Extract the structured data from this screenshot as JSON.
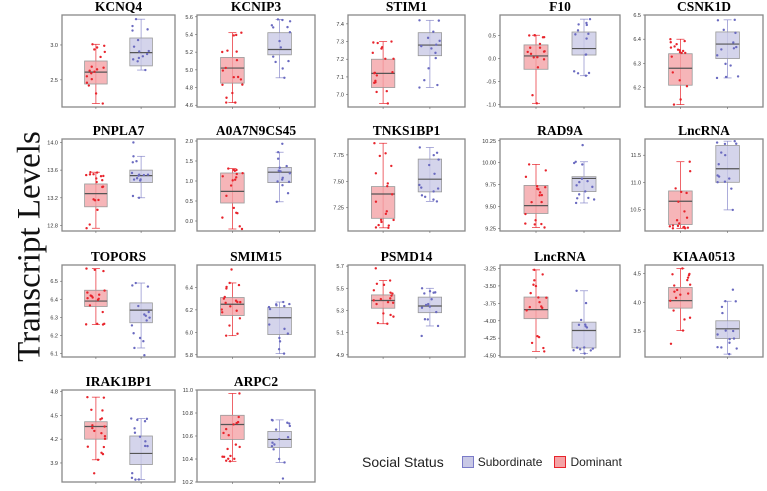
{
  "chart_data": {
    "type": "box",
    "ylabel": "Transcript Levels",
    "legend": {
      "title": "Social Status",
      "placement": "bottom-right",
      "entries": [
        {
          "name": "Subordinate",
          "color": "#7b7bc8",
          "fill": "#c9c9e6"
        },
        {
          "name": "Dominant",
          "color": "#e8242c",
          "fill": "#f4a3a6"
        }
      ]
    },
    "group_order": [
      "Dominant",
      "Subordinate"
    ],
    "panels": [
      {
        "title": "KCNQ4",
        "ylim": [
          2.11,
          3.43
        ],
        "ticks": [
          "2.5",
          "3.0"
        ],
        "Dominant": {
          "min": 2.16,
          "q1": 2.44,
          "median": 2.61,
          "q3": 2.77,
          "max": 3.01,
          "outliers": []
        },
        "Subordinate": {
          "min": 2.64,
          "q1": 2.7,
          "median": 2.89,
          "q3": 3.1,
          "max": 3.37,
          "outliers": []
        }
      },
      {
        "title": "KCNIP3",
        "ylim": [
          4.58,
          5.62
        ],
        "ticks": [
          "4.6",
          "4.8",
          "5.0",
          "5.2",
          "5.4",
          "5.6"
        ],
        "Dominant": {
          "min": 4.63,
          "q1": 4.85,
          "median": 5.02,
          "q3": 5.14,
          "max": 5.42,
          "outliers": []
        },
        "Subordinate": {
          "min": 4.91,
          "q1": 5.17,
          "median": 5.23,
          "q3": 5.42,
          "max": 5.57,
          "outliers": []
        }
      },
      {
        "title": "STIM1",
        "ylim": [
          6.93,
          7.45
        ],
        "ticks": [
          "7.0",
          "7.1",
          "7.2",
          "7.3",
          "7.4"
        ],
        "Dominant": {
          "min": 6.95,
          "q1": 7.04,
          "median": 7.12,
          "q3": 7.2,
          "max": 7.3,
          "outliers": []
        },
        "Subordinate": {
          "min": 7.04,
          "q1": 7.22,
          "median": 7.28,
          "q3": 7.35,
          "max": 7.42,
          "outliers": []
        }
      },
      {
        "title": "F10",
        "ylim": [
          -1.05,
          0.95
        ],
        "ticks": [
          "-1.0",
          "-0.5",
          "0.0",
          "0.5"
        ],
        "Dominant": {
          "min": -0.97,
          "q1": -0.23,
          "median": 0.06,
          "q3": 0.3,
          "max": 0.51,
          "outliers": []
        },
        "Subordinate": {
          "min": -0.37,
          "q1": 0.08,
          "median": 0.22,
          "q3": 0.58,
          "max": 0.86,
          "outliers": []
        }
      },
      {
        "title": "CSNK1D",
        "ylim": [
          6.12,
          6.5
        ],
        "ticks": [
          "6.2",
          "6.3",
          "6.4",
          "6.5"
        ],
        "Dominant": {
          "min": 6.13,
          "q1": 6.21,
          "median": 6.28,
          "q3": 6.34,
          "max": 6.4,
          "outliers": []
        },
        "Subordinate": {
          "min": 6.24,
          "q1": 6.32,
          "median": 6.38,
          "q3": 6.43,
          "max": 6.48,
          "outliers": []
        }
      },
      {
        "title": "PNPLA7",
        "ylim": [
          12.72,
          14.05
        ],
        "ticks": [
          "12.8",
          "13.2",
          "13.6",
          "14.0"
        ],
        "Dominant": {
          "min": 12.76,
          "q1": 13.07,
          "median": 13.26,
          "q3": 13.4,
          "max": 13.57,
          "outliers": []
        },
        "Subordinate": {
          "min": 13.2,
          "q1": 13.42,
          "median": 13.52,
          "q3": 13.6,
          "max": 13.8,
          "outliers": [
            14.0
          ]
        }
      },
      {
        "title": "A0A7N9CS45",
        "ylim": [
          -0.25,
          2.05
        ],
        "ticks": [
          "0.0",
          "0.5",
          "1.0",
          "1.5",
          "2.0"
        ],
        "Dominant": {
          "min": -0.2,
          "q1": 0.45,
          "median": 0.74,
          "q3": 1.2,
          "max": 1.31,
          "outliers": []
        },
        "Subordinate": {
          "min": 0.48,
          "q1": 0.96,
          "median": 1.22,
          "q3": 1.34,
          "max": 1.72,
          "outliers": [
            1.93
          ]
        }
      },
      {
        "title": "TNKS1BP1",
        "ylim": [
          7.03,
          7.9
        ],
        "ticks": [
          "7.25",
          "7.50",
          "7.75"
        ],
        "Dominant": {
          "min": 7.06,
          "q1": 7.15,
          "median": 7.38,
          "q3": 7.45,
          "max": 7.86,
          "outliers": []
        },
        "Subordinate": {
          "min": 7.31,
          "q1": 7.4,
          "median": 7.52,
          "q3": 7.71,
          "max": 7.82,
          "outliers": []
        }
      },
      {
        "title": "RAD9A",
        "ylim": [
          9.22,
          10.27
        ],
        "ticks": [
          "9.25",
          "9.50",
          "9.75",
          "10.00",
          "10.25"
        ],
        "Dominant": {
          "min": 9.26,
          "q1": 9.42,
          "median": 9.51,
          "q3": 9.74,
          "max": 9.98,
          "outliers": []
        },
        "Subordinate": {
          "min": 9.54,
          "q1": 9.67,
          "median": 9.82,
          "q3": 9.84,
          "max": 10.01,
          "outliers": [
            10.2
          ]
        }
      },
      {
        "title": "LncRNA",
        "ylim": [
          10.1,
          11.8
        ],
        "ticks": [
          "10.5",
          "11.0",
          "11.5"
        ],
        "Dominant": {
          "min": 10.15,
          "q1": 10.22,
          "median": 10.65,
          "q3": 10.84,
          "max": 11.38,
          "outliers": []
        },
        "Subordinate": {
          "min": 10.49,
          "q1": 11.0,
          "median": 11.25,
          "q3": 11.68,
          "max": 11.76,
          "outliers": []
        }
      },
      {
        "title": "TOPORS",
        "ylim": [
          6.08,
          6.59
        ],
        "ticks": [
          "6.1",
          "6.2",
          "6.3",
          "6.4",
          "6.5"
        ],
        "Dominant": {
          "min": 6.26,
          "q1": 6.36,
          "median": 6.39,
          "q3": 6.45,
          "max": 6.57,
          "outliers": []
        },
        "Subordinate": {
          "min": 6.13,
          "q1": 6.27,
          "median": 6.34,
          "q3": 6.38,
          "max": 6.49,
          "outliers": [
            6.09
          ]
        }
      },
      {
        "title": "SMIM15",
        "ylim": [
          5.78,
          6.6
        ],
        "ticks": [
          "5.8",
          "6.0",
          "6.2",
          "6.4"
        ],
        "Dominant": {
          "min": 5.97,
          "q1": 6.15,
          "median": 6.25,
          "q3": 6.31,
          "max": 6.44,
          "outliers": [
            6.56
          ]
        },
        "Subordinate": {
          "min": 5.81,
          "q1": 5.98,
          "median": 6.13,
          "q3": 6.22,
          "max": 6.27,
          "outliers": []
        }
      },
      {
        "title": "PSMD14",
        "ylim": [
          4.88,
          5.71
        ],
        "ticks": [
          "4.9",
          "5.1",
          "5.3",
          "5.5",
          "5.7"
        ],
        "Dominant": {
          "min": 5.18,
          "q1": 5.32,
          "median": 5.39,
          "q3": 5.44,
          "max": 5.57,
          "outliers": [
            5.68
          ]
        },
        "Subordinate": {
          "min": 5.16,
          "q1": 5.28,
          "median": 5.34,
          "q3": 5.42,
          "max": 5.5,
          "outliers": [
            5.07
          ]
        }
      },
      {
        "title": "LncRNA",
        "ylim": [
          -4.52,
          -3.2
        ],
        "ticks": [
          "-4.50",
          "-4.25",
          "-4.00",
          "-3.75",
          "-3.50",
          "-3.25"
        ],
        "Dominant": {
          "min": -4.44,
          "q1": -3.97,
          "median": -3.84,
          "q3": -3.66,
          "max": -3.27,
          "outliers": []
        },
        "Subordinate": {
          "min": -4.47,
          "q1": -4.39,
          "median": -4.14,
          "q3": -4.02,
          "max": -3.57,
          "outliers": []
        }
      },
      {
        "title": "KIAA0513",
        "ylim": [
          3.05,
          4.65
        ],
        "ticks": [
          "3.5",
          "4.0",
          "4.5"
        ],
        "Dominant": {
          "min": 3.51,
          "q1": 3.9,
          "median": 4.03,
          "q3": 4.26,
          "max": 4.59,
          "outliers": [
            3.28
          ]
        },
        "Subordinate": {
          "min": 3.1,
          "q1": 3.37,
          "median": 3.54,
          "q3": 3.68,
          "max": 4.02,
          "outliers": [
            4.22
          ]
        }
      },
      {
        "title": "IRAK1BP1",
        "ylim": [
          3.66,
          4.82
        ],
        "ticks": [
          "3.9",
          "4.2",
          "4.5",
          "4.8"
        ],
        "Dominant": {
          "min": 3.94,
          "q1": 4.2,
          "median": 4.36,
          "q3": 4.42,
          "max": 4.73,
          "outliers": [
            3.77
          ]
        },
        "Subordinate": {
          "min": 3.69,
          "q1": 3.88,
          "median": 4.02,
          "q3": 4.24,
          "max": 4.46,
          "outliers": []
        }
      },
      {
        "title": "ARPC2",
        "ylim": [
          10.2,
          11.0
        ],
        "ticks": [
          "10.2",
          "10.4",
          "10.6",
          "10.8",
          "11.0"
        ],
        "Dominant": {
          "min": 10.38,
          "q1": 10.57,
          "median": 10.7,
          "q3": 10.78,
          "max": 10.97,
          "outliers": []
        },
        "Subordinate": {
          "min": 10.37,
          "q1": 10.5,
          "median": 10.57,
          "q3": 10.64,
          "max": 10.74,
          "outliers": [
            10.23
          ]
        }
      }
    ]
  }
}
